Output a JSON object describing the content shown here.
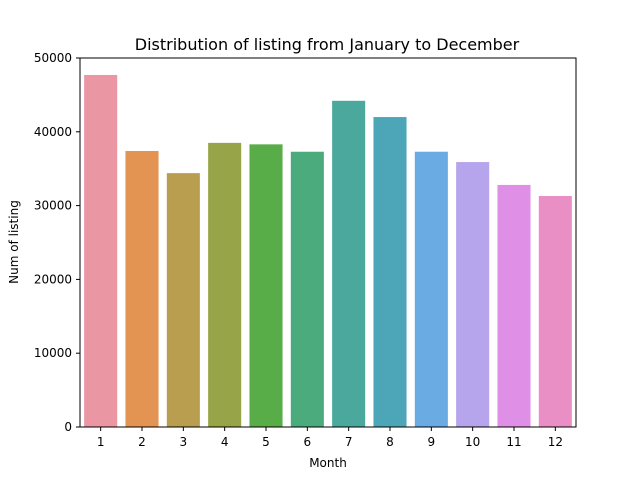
{
  "chart_data": {
    "type": "bar",
    "title": "Distribution of listing from January to December",
    "xlabel": "Month",
    "ylabel": "Num of listing",
    "categories": [
      "1",
      "2",
      "3",
      "4",
      "5",
      "6",
      "7",
      "8",
      "9",
      "10",
      "11",
      "12"
    ],
    "values": [
      47700,
      37400,
      34400,
      38500,
      38300,
      37300,
      44200,
      42000,
      37300,
      35900,
      32800,
      31300
    ],
    "colors": [
      "#ea96a3",
      "#e39453",
      "#b99e4f",
      "#98a448",
      "#59ad48",
      "#4bab7c",
      "#4aa89d",
      "#4da6b8",
      "#6aabe3",
      "#b6a5ec",
      "#df8fe5",
      "#ea8fc6"
    ],
    "ylim": [
      0,
      50000
    ],
    "yticks": [
      0,
      10000,
      20000,
      30000,
      40000,
      50000
    ],
    "ytick_labels": [
      "0",
      "10000",
      "20000",
      "30000",
      "40000",
      "50000"
    ],
    "grid": false,
    "legend": "none"
  }
}
